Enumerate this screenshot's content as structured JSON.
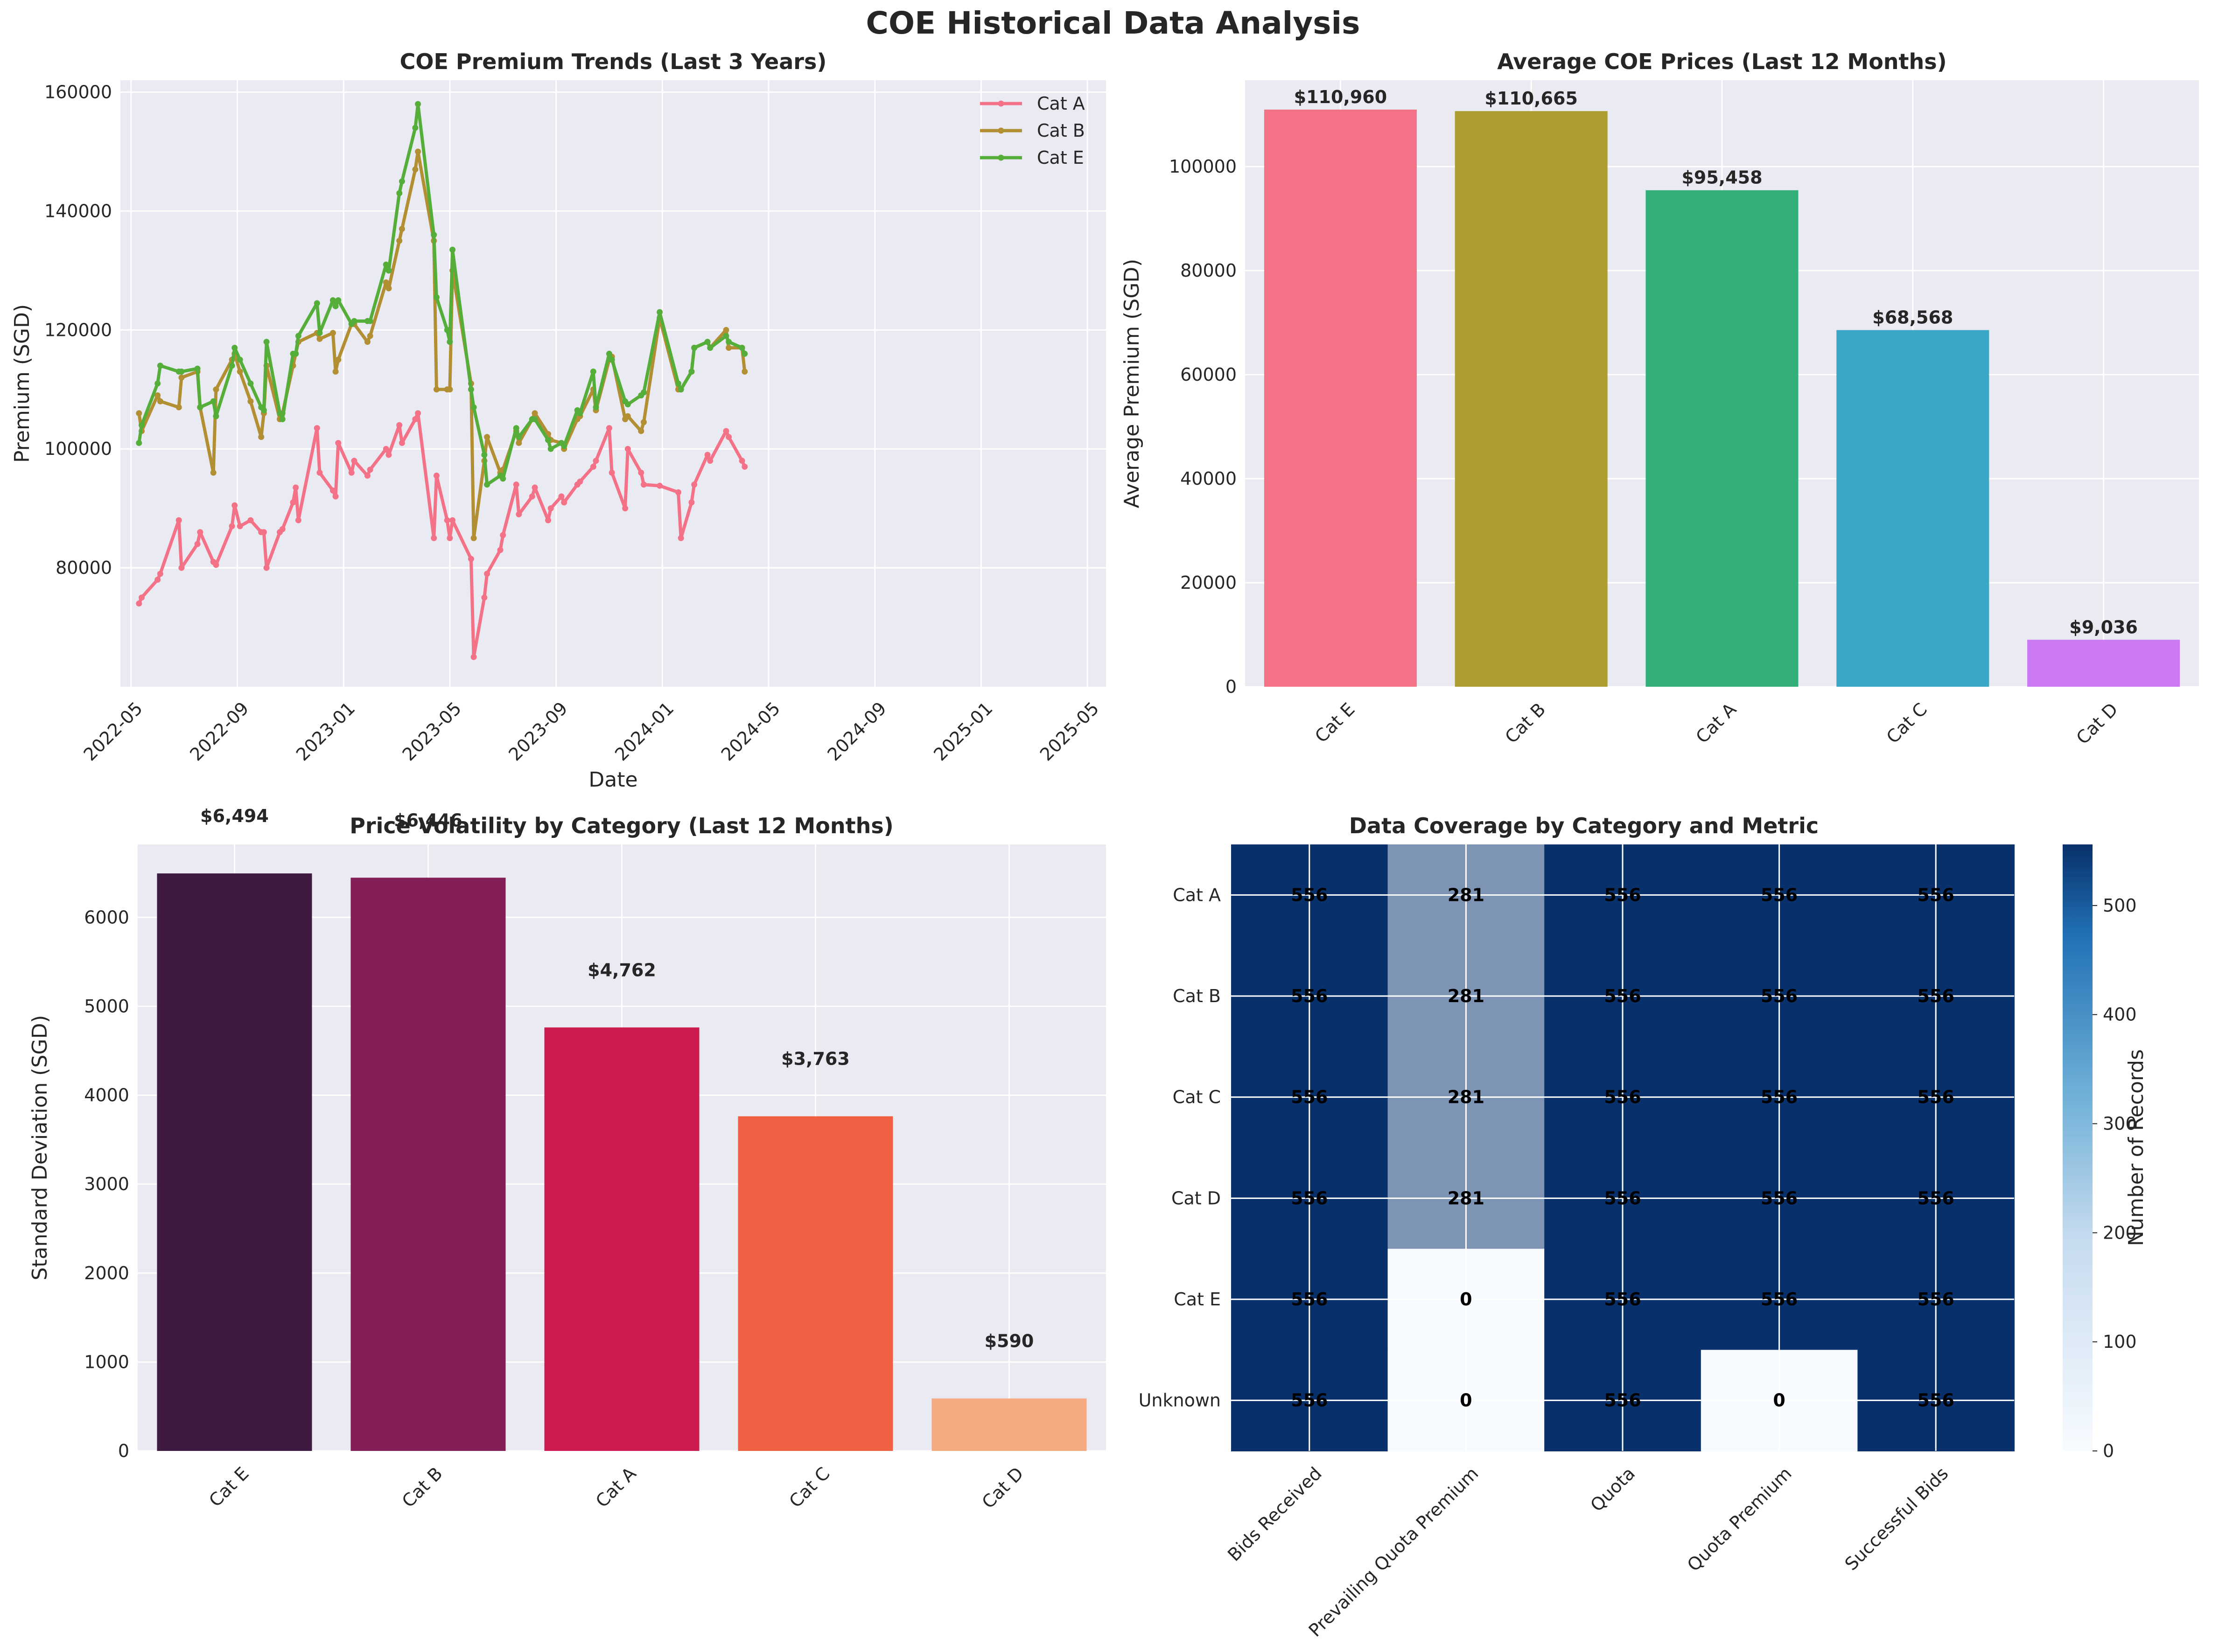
{
  "figure": {
    "title": "COE Historical Data Analysis"
  },
  "colors": {
    "panel_bg": "#EAEAF2",
    "grid": "#FFFFFF",
    "cat_a": "#F37287",
    "cat_b": "#B38F33",
    "cat_e": "#55AE3A",
    "avg_bars": [
      "#F37287",
      "#AE9D31",
      "#33B07A",
      "#38A8C5",
      "#CC79F4"
    ],
    "vol_bars": [
      "#3F1A40",
      "#821D56",
      "#CB1B4F",
      "#F06043",
      "#F6AA82"
    ],
    "heat_low": "#F7FBFF",
    "heat_high": "#08306B"
  },
  "chart_data": [
    {
      "type": "line",
      "title": "COE Premium Trends (Last 3 Years)",
      "xlabel": "Date",
      "ylabel": "Premium (SGD)",
      "ylim": [
        60000,
        162000
      ],
      "yticks": [
        80000,
        100000,
        120000,
        140000,
        160000
      ],
      "xticks": [
        "2022-05",
        "2022-09",
        "2023-01",
        "2023-05",
        "2023-09",
        "2024-01",
        "2024-05",
        "2024-09",
        "2025-01",
        "2025-05"
      ],
      "legend_position": "top-right",
      "x_unit": "months since 2022-05",
      "x_range": [
        -0.4,
        36.7
      ],
      "series": [
        {
          "name": "Cat A",
          "color_key": "cat_a",
          "points": [
            [
              0.3,
              74000
            ],
            [
              0.4,
              75000
            ],
            [
              1.0,
              78000
            ],
            [
              1.1,
              79000
            ],
            [
              1.8,
              88000
            ],
            [
              1.9,
              80000
            ],
            [
              2.5,
              84000
            ],
            [
              2.6,
              86000
            ],
            [
              3.1,
              81000
            ],
            [
              3.2,
              80500
            ],
            [
              3.8,
              87000
            ],
            [
              3.9,
              90500
            ],
            [
              4.1,
              87000
            ],
            [
              4.5,
              88000
            ],
            [
              4.9,
              86000
            ],
            [
              5.0,
              86000
            ],
            [
              5.1,
              80000
            ],
            [
              5.6,
              86000
            ],
            [
              5.7,
              86500
            ],
            [
              6.1,
              91000
            ],
            [
              6.2,
              93500
            ],
            [
              6.3,
              88000
            ],
            [
              7.0,
              103500
            ],
            [
              7.1,
              96000
            ],
            [
              7.6,
              93000
            ],
            [
              7.7,
              92000
            ],
            [
              7.8,
              101000
            ],
            [
              8.3,
              96000
            ],
            [
              8.4,
              98000
            ],
            [
              8.9,
              95500
            ],
            [
              9.0,
              96500
            ],
            [
              9.6,
              100000
            ],
            [
              9.7,
              99000
            ],
            [
              10.1,
              104000
            ],
            [
              10.2,
              101000
            ],
            [
              10.7,
              105000
            ],
            [
              10.8,
              106000
            ],
            [
              11.4,
              85000
            ],
            [
              11.5,
              95500
            ],
            [
              11.9,
              88000
            ],
            [
              12.0,
              85000
            ],
            [
              12.1,
              88000
            ],
            [
              12.8,
              81500
            ],
            [
              12.9,
              65000
            ],
            [
              13.3,
              75000
            ],
            [
              13.4,
              79000
            ],
            [
              13.9,
              83000
            ],
            [
              14.0,
              85500
            ],
            [
              14.5,
              94000
            ],
            [
              14.6,
              89000
            ],
            [
              15.1,
              92000
            ],
            [
              15.2,
              93500
            ],
            [
              15.7,
              88000
            ],
            [
              15.8,
              90000
            ],
            [
              16.2,
              92000
            ],
            [
              16.3,
              91000
            ],
            [
              16.8,
              94000
            ],
            [
              16.9,
              94500
            ],
            [
              17.4,
              97000
            ],
            [
              17.5,
              98000
            ],
            [
              18.0,
              103500
            ],
            [
              18.1,
              96000
            ],
            [
              18.6,
              90000
            ],
            [
              18.7,
              100000
            ],
            [
              19.2,
              96000
            ],
            [
              19.3,
              94000
            ],
            [
              19.9,
              93800
            ],
            [
              20.6,
              92700
            ],
            [
              20.7,
              85000
            ],
            [
              21.1,
              91000
            ],
            [
              21.2,
              94000
            ],
            [
              21.7,
              99000
            ],
            [
              21.8,
              98000
            ],
            [
              22.4,
              103000
            ],
            [
              22.5,
              102000
            ],
            [
              23.0,
              98000
            ],
            [
              23.1,
              97000
            ]
          ]
        },
        {
          "name": "Cat B",
          "color_key": "cat_b",
          "points": [
            [
              0.3,
              106000
            ],
            [
              0.4,
              103000
            ],
            [
              1.0,
              109000
            ],
            [
              1.1,
              108000
            ],
            [
              1.8,
              107000
            ],
            [
              1.9,
              112000
            ],
            [
              2.5,
              113000
            ],
            [
              2.6,
              107000
            ],
            [
              3.1,
              96000
            ],
            [
              3.2,
              110000
            ],
            [
              3.8,
              115000
            ],
            [
              3.9,
              116000
            ],
            [
              4.1,
              113000
            ],
            [
              4.5,
              108000
            ],
            [
              4.9,
              102000
            ],
            [
              5.0,
              106000
            ],
            [
              5.1,
              114000
            ],
            [
              5.6,
              105000
            ],
            [
              5.7,
              106000
            ],
            [
              6.1,
              114000
            ],
            [
              6.2,
              116000
            ],
            [
              6.3,
              118000
            ],
            [
              7.0,
              119500
            ],
            [
              7.1,
              118500
            ],
            [
              7.6,
              119500
            ],
            [
              7.7,
              113000
            ],
            [
              7.8,
              115000
            ],
            [
              8.3,
              121000
            ],
            [
              8.4,
              121000
            ],
            [
              8.9,
              118000
            ],
            [
              9.0,
              119000
            ],
            [
              9.6,
              128000
            ],
            [
              9.7,
              127000
            ],
            [
              10.1,
              135000
            ],
            [
              10.2,
              137000
            ],
            [
              10.7,
              147000
            ],
            [
              10.8,
              150000
            ],
            [
              11.4,
              135000
            ],
            [
              11.5,
              110000
            ],
            [
              11.9,
              110000
            ],
            [
              12.0,
              110000
            ],
            [
              12.1,
              130000
            ],
            [
              12.8,
              111000
            ],
            [
              12.9,
              85000
            ],
            [
              13.3,
              98000
            ],
            [
              13.4,
              102000
            ],
            [
              13.9,
              96000
            ],
            [
              14.0,
              96500
            ],
            [
              14.5,
              103000
            ],
            [
              14.6,
              101000
            ],
            [
              15.1,
              105000
            ],
            [
              15.2,
              106000
            ],
            [
              15.7,
              102500
            ],
            [
              15.8,
              101500
            ],
            [
              16.2,
              101000
            ],
            [
              16.3,
              100000
            ],
            [
              16.8,
              105000
            ],
            [
              16.9,
              105500
            ],
            [
              17.4,
              110000
            ],
            [
              17.5,
              106500
            ],
            [
              18.0,
              115000
            ],
            [
              18.1,
              115500
            ],
            [
              18.6,
              105000
            ],
            [
              18.7,
              105500
            ],
            [
              19.2,
              103000
            ],
            [
              19.3,
              104500
            ],
            [
              19.9,
              122000
            ],
            [
              20.6,
              110000
            ],
            [
              20.7,
              110000
            ],
            [
              21.1,
              113000
            ],
            [
              21.2,
              117000
            ],
            [
              21.7,
              118000
            ],
            [
              21.8,
              117000
            ],
            [
              22.4,
              120000
            ],
            [
              22.5,
              117000
            ],
            [
              23.0,
              117000
            ],
            [
              23.1,
              113000
            ]
          ]
        },
        {
          "name": "Cat E",
          "color_key": "cat_e",
          "points": [
            [
              0.3,
              101000
            ],
            [
              0.4,
              104000
            ],
            [
              1.0,
              111000
            ],
            [
              1.1,
              114000
            ],
            [
              1.8,
              113000
            ],
            [
              1.9,
              113000
            ],
            [
              2.5,
              113500
            ],
            [
              2.6,
              107000
            ],
            [
              3.1,
              108000
            ],
            [
              3.2,
              105500
            ],
            [
              3.8,
              114000
            ],
            [
              3.9,
              117000
            ],
            [
              4.1,
              115000
            ],
            [
              4.5,
              111000
            ],
            [
              4.9,
              107000
            ],
            [
              5.0,
              106500
            ],
            [
              5.1,
              118000
            ],
            [
              5.6,
              106000
            ],
            [
              5.7,
              105000
            ],
            [
              6.1,
              116000
            ],
            [
              6.2,
              116000
            ],
            [
              6.3,
              119000
            ],
            [
              7.0,
              124500
            ],
            [
              7.1,
              119500
            ],
            [
              7.6,
              125000
            ],
            [
              7.7,
              124000
            ],
            [
              7.8,
              125000
            ],
            [
              8.3,
              121000
            ],
            [
              8.4,
              121500
            ],
            [
              8.9,
              121500
            ],
            [
              9.0,
              121500
            ],
            [
              9.6,
              131000
            ],
            [
              9.7,
              130000
            ],
            [
              10.1,
              143000
            ],
            [
              10.2,
              145000
            ],
            [
              10.7,
              154000
            ],
            [
              10.8,
              158000
            ],
            [
              11.4,
              136000
            ],
            [
              11.5,
              125500
            ],
            [
              11.9,
              120000
            ],
            [
              12.0,
              118000
            ],
            [
              12.1,
              133500
            ],
            [
              12.8,
              110000
            ],
            [
              12.9,
              107000
            ],
            [
              13.3,
              99000
            ],
            [
              13.4,
              94000
            ],
            [
              13.9,
              95500
            ],
            [
              14.0,
              95000
            ],
            [
              14.5,
              103500
            ],
            [
              14.6,
              102000
            ],
            [
              15.1,
              105000
            ],
            [
              15.2,
              105000
            ],
            [
              15.7,
              101500
            ],
            [
              15.8,
              100000
            ],
            [
              16.2,
              101000
            ],
            [
              16.3,
              100500
            ],
            [
              16.8,
              106500
            ],
            [
              16.9,
              106000
            ],
            [
              17.4,
              113000
            ],
            [
              17.5,
              107000
            ],
            [
              18.0,
              116000
            ],
            [
              18.1,
              115000
            ],
            [
              18.6,
              108000
            ],
            [
              18.7,
              107500
            ],
            [
              19.2,
              109000
            ],
            [
              19.3,
              109500
            ],
            [
              19.9,
              123000
            ],
            [
              20.6,
              111000
            ],
            [
              20.7,
              110000
            ],
            [
              21.1,
              113000
            ],
            [
              21.2,
              117000
            ],
            [
              21.7,
              118000
            ],
            [
              21.8,
              117000
            ],
            [
              22.4,
              119000
            ],
            [
              22.5,
              118000
            ],
            [
              23.0,
              117000
            ],
            [
              23.1,
              116000
            ]
          ]
        }
      ]
    },
    {
      "type": "bar",
      "title": "Average COE Prices (Last 12 Months)",
      "ylabel": "Average Premium (SGD)",
      "categories": [
        "Cat E",
        "Cat B",
        "Cat A",
        "Cat C",
        "Cat D"
      ],
      "values": [
        110960,
        110665,
        95458,
        68568,
        9036
      ],
      "labels": [
        "$110,960",
        "$110,665",
        "$95,458",
        "$68,568",
        "$9,036"
      ],
      "ylim": [
        0,
        116600
      ],
      "yticks": [
        0,
        20000,
        40000,
        60000,
        80000,
        100000
      ]
    },
    {
      "type": "bar",
      "title": "Price Volatility by Category (Last 12 Months)",
      "ylabel": "Standard Deviation (SGD)",
      "categories": [
        "Cat E",
        "Cat B",
        "Cat A",
        "Cat C",
        "Cat D"
      ],
      "values": [
        6494,
        6446,
        4762,
        3763,
        590
      ],
      "labels": [
        "$6,494",
        "$6,446",
        "$4,762",
        "$3,763",
        "$590"
      ],
      "ylim": [
        0,
        6820
      ],
      "yticks": [
        0,
        1000,
        2000,
        3000,
        4000,
        5000,
        6000
      ]
    },
    {
      "type": "heatmap",
      "title": "Data Coverage by Category and Metric",
      "rows": [
        "Cat A",
        "Cat B",
        "Cat C",
        "Cat D",
        "Cat E",
        "Unknown"
      ],
      "columns": [
        "Bids Received",
        "Prevailing Quota Premium",
        "Quota",
        "Quota Premium",
        "Successful Bids"
      ],
      "values": [
        [
          556,
          281,
          556,
          556,
          556
        ],
        [
          556,
          281,
          556,
          556,
          556
        ],
        [
          556,
          281,
          556,
          556,
          556
        ],
        [
          556,
          281,
          556,
          556,
          556
        ],
        [
          556,
          0,
          556,
          556,
          556
        ],
        [
          556,
          0,
          556,
          0,
          556
        ]
      ],
      "colorbar": {
        "label": "Number of Records",
        "ticks": [
          0,
          100,
          200,
          300,
          400,
          500
        ],
        "max": 556
      }
    }
  ]
}
